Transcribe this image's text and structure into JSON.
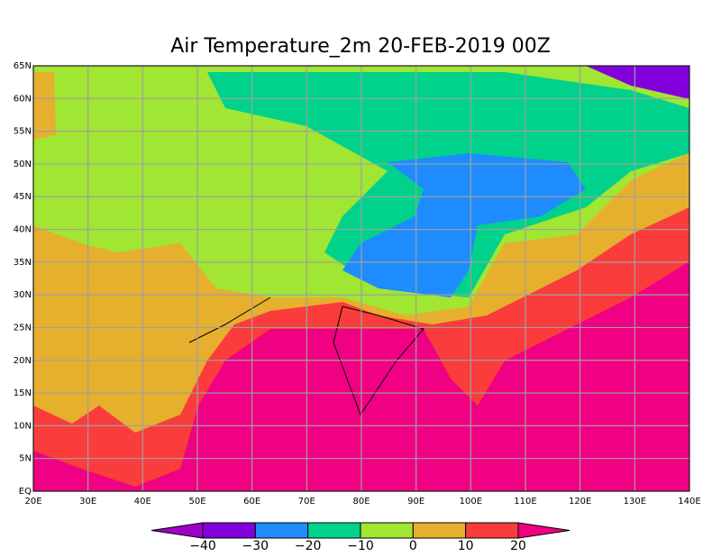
{
  "title": "Air Temperature_2m 20-FEB-2019 00Z",
  "lon_labels": [
    "20E",
    "30E",
    "40E",
    "50E",
    "60E",
    "70E",
    "80E",
    "90E",
    "100E",
    "110E",
    "120E",
    "130E",
    "140E"
  ],
  "lat_labels": [
    "EQ",
    "5N",
    "10N",
    "15N",
    "20N",
    "25N",
    "30N",
    "35N",
    "40N",
    "45N",
    "50N",
    "55N",
    "60N",
    "65N"
  ],
  "colorbar": {
    "labels": [
      "−40",
      "−30",
      "−20",
      "−10",
      "0",
      "10",
      "20"
    ],
    "colors": [
      "#a000c8",
      "#8200dc",
      "#1e8cff",
      "#00d28c",
      "#a0e632",
      "#e6af2d",
      "#fa3c3c",
      "#f00082"
    ]
  }
}
